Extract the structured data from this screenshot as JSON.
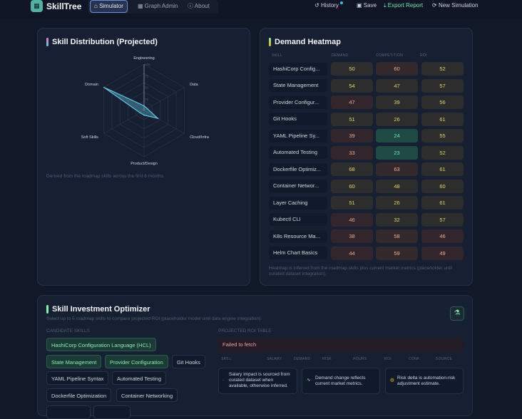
{
  "app": {
    "name": "SkillTree",
    "logo_icon": "grid-icon"
  },
  "nav": [
    {
      "label": "Simulator",
      "icon": "home-icon",
      "active": true
    },
    {
      "label": "Graph Admin",
      "icon": "grid-icon"
    },
    {
      "label": "About",
      "icon": "info-icon"
    }
  ],
  "actions": {
    "history": "History",
    "save": "Save",
    "export": "Export Report",
    "new": "New Simulation"
  },
  "radar": {
    "title": "Skill Distribution (Projected)",
    "caption": "Derived from the roadmap skills across the first 6 months."
  },
  "chart_data": {
    "type": "radar",
    "axes": [
      "Engineering",
      "Data",
      "Cloud/Infra",
      "Product/Design",
      "Soft Skills",
      "Domain"
    ],
    "values": [
      10,
      8,
      34,
      10,
      10,
      100
    ],
    "range": [
      0,
      100
    ],
    "ticks": [
      "100",
      "75",
      "50",
      "25"
    ],
    "color": "#5bc8e0"
  },
  "heatmap": {
    "title": "Demand Heatmap",
    "columns": [
      "SKILL",
      "DEMAND",
      "COMPETITION",
      "ROI"
    ],
    "rows": [
      [
        "HashiCorp Config...",
        50,
        60,
        52
      ],
      [
        "State Management",
        54,
        47,
        57
      ],
      [
        "Provider Configur...",
        47,
        39,
        56
      ],
      [
        "Git Hooks",
        51,
        26,
        61
      ],
      [
        "YAML Pipeline Sy...",
        39,
        24,
        55
      ],
      [
        "Automated Testing",
        33,
        23,
        52
      ],
      [
        "Dockerfile Optimiz...",
        68,
        63,
        61
      ],
      [
        "Container Networ...",
        60,
        48,
        60
      ],
      [
        "Layer Caching",
        51,
        26,
        61
      ],
      [
        "Kubectl CLI",
        46,
        32,
        57
      ],
      [
        "K8s Resource Ma...",
        38,
        58,
        46
      ],
      [
        "Helm Chart Basics",
        44,
        59,
        49
      ]
    ],
    "caption": "Heatmap is inferred from the roadmap skills plus current market metrics (placeholder until curated dataset integration)."
  },
  "optimizer": {
    "title": "Skill Investment Optimizer",
    "subtitle": "Select up to 5 roadmap skills to compare projected ROI (placeholder model until data engine integration).",
    "candidates_label": "CANDIDATE SKILLS",
    "table_label": "PROJECTED ROI TABLE",
    "error": "Failed to fetch",
    "columns": [
      "SKILL",
      "SALARY",
      "DEMAND",
      "RISK",
      "HOURS",
      "ROI",
      "CONF.",
      "SOURCE"
    ],
    "chips": [
      {
        "label": "HashiCorp Configuration Language (HCL)",
        "selected": true
      },
      {
        "label": "State Management",
        "selected": true
      },
      {
        "label": "Provider Configuration",
        "selected": true
      },
      {
        "label": "Git Hooks",
        "selected": false
      },
      {
        "label": "YAML Pipeline Syntax",
        "selected": false
      },
      {
        "label": "Automated Testing",
        "selected": false
      },
      {
        "label": "Dockerfile Optimization",
        "selected": false
      },
      {
        "label": "Container Networking",
        "selected": false
      }
    ],
    "notes": [
      "Salary impact is sourced from curated dataset when available, otherwise inferred.",
      "Demand change reflects current market metrics.",
      "Risk delta is automation-risk adjustment estimate."
    ]
  }
}
